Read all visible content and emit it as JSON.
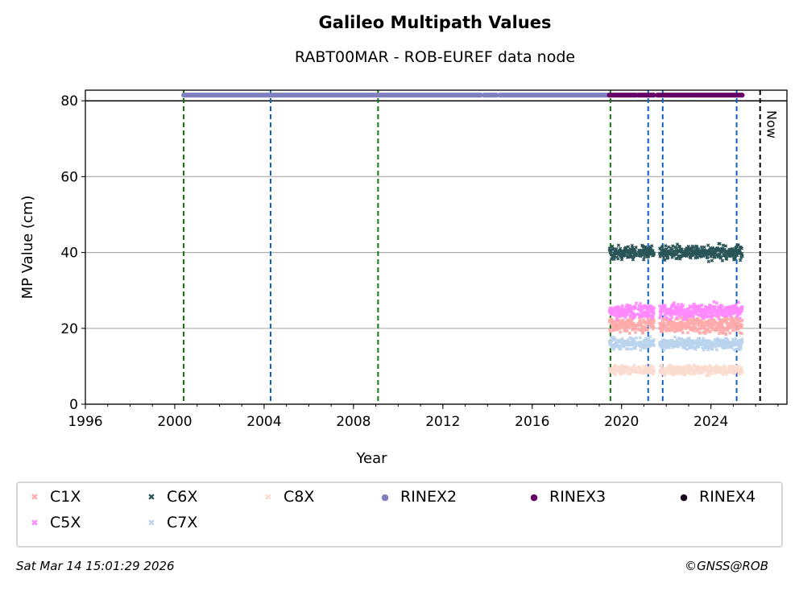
{
  "chart_data": {
    "type": "scatter",
    "title": "Galileo Multipath Values",
    "subtitle": "RABT00MAR - ROB-EUREF data node",
    "xlabel": "Year",
    "ylabel": "MP Value (cm)",
    "xlim": [
      1996,
      2027.4
    ],
    "ylim": [
      0,
      82.8
    ],
    "xticks": [
      "1996",
      "2000",
      "2004",
      "2008",
      "2012",
      "2016",
      "2020",
      "2024"
    ],
    "yticks": [
      "0",
      "20",
      "40",
      "60",
      "80"
    ],
    "grid": "y",
    "segments": [
      [
        2019.45,
        2020.65
      ],
      [
        2020.75,
        2021.45
      ],
      [
        2021.7,
        2025.4
      ]
    ],
    "series": [
      {
        "name": "C1X",
        "color": "#ffaaaa",
        "marker": "x",
        "mean": 21,
        "spread": 1.5
      },
      {
        "name": "C5X",
        "color": "#ff88ff",
        "marker": "x",
        "mean": 24.5,
        "spread": 1.3
      },
      {
        "name": "C6X",
        "color": "#2a5558",
        "marker": "x",
        "mean": 40,
        "spread": 1.2
      },
      {
        "name": "C7X",
        "color": "#bbd4ee",
        "marker": "x",
        "mean": 16,
        "spread": 1.0
      },
      {
        "name": "C8X",
        "color": "#fbdcd0",
        "marker": "x",
        "mean": 9,
        "spread": 0.8
      }
    ],
    "rinex": [
      {
        "name": "RINEX2",
        "color": "#8080c0",
        "value": 81.5,
        "ranges": [
          [
            2000.4,
            2013.7
          ],
          [
            2013.85,
            2014.4
          ],
          [
            2014.55,
            2019.4
          ]
        ]
      },
      {
        "name": "RINEX3",
        "color": "#660066",
        "value": 81.5,
        "ranges": [
          [
            2019.45,
            2020.65
          ],
          [
            2020.75,
            2021.45
          ],
          [
            2021.6,
            2023.05
          ],
          [
            2023.1,
            2025.4
          ]
        ]
      },
      {
        "name": "RINEX4",
        "color": "#1a0020",
        "value": 81.5,
        "ranges": []
      }
    ],
    "hline": 80,
    "vlines": [
      {
        "x": 2000.4,
        "color": "#e00000"
      },
      {
        "x": 2000.4,
        "color": "#117711"
      },
      {
        "x": 2004.29,
        "color": "#1060c0"
      },
      {
        "x": 2009.1,
        "color": "#117711"
      },
      {
        "x": 2019.5,
        "color": "#117711"
      },
      {
        "x": 2021.19,
        "color": "#1060c0"
      },
      {
        "x": 2021.84,
        "color": "#1060c0"
      },
      {
        "x": 2025.15,
        "color": "#1060c0"
      },
      {
        "x": 2026.2,
        "color": "#000000"
      }
    ],
    "now_label": "Now"
  },
  "footer": {
    "timestamp": "Sat Mar 14 15:01:29 2026",
    "credit": "©GNSS@ROB"
  }
}
